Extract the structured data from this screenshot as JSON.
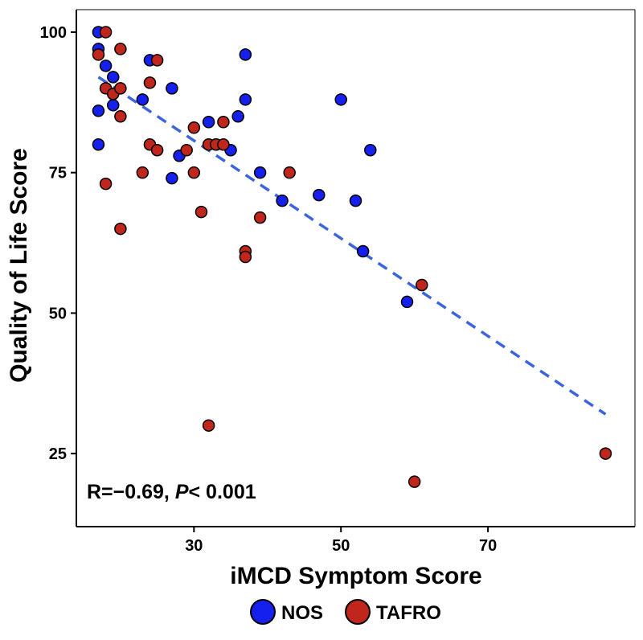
{
  "chart_data": {
    "type": "scatter",
    "title": "",
    "xlabel": "iMCD Symptom Score",
    "ylabel": "Quality of Life Score",
    "xlim": [
      14,
      90
    ],
    "ylim": [
      12,
      104
    ],
    "xticks": [
      30,
      50,
      70
    ],
    "yticks": [
      25,
      50,
      75,
      100
    ],
    "grid": false,
    "legend": {
      "position": "bottom",
      "entries": [
        "NOS",
        "TAFRO"
      ]
    },
    "annotation": {
      "r_prefix": "R=",
      "r_value": "−0.69",
      "separator": ", ",
      "p_label": "P",
      "p_text": "< 0.001",
      "position": "bottom-left"
    },
    "colors": {
      "NOS": "#1520ee",
      "TAFRO": "#c0261b",
      "trend": "#3c64dc"
    },
    "trendline": {
      "x": [
        17,
        86
      ],
      "y": [
        92,
        32
      ],
      "style": "dashed"
    },
    "series": [
      {
        "name": "NOS",
        "x": [
          17,
          17,
          17,
          17,
          18,
          19,
          19,
          23,
          24,
          27,
          27,
          28,
          32,
          33,
          35,
          36,
          37,
          37,
          39,
          42,
          47,
          50,
          52,
          53,
          54,
          59
        ],
        "y": [
          100,
          97,
          86,
          80,
          94,
          92,
          87,
          88,
          95,
          90,
          74,
          78,
          84,
          80,
          79,
          85,
          88,
          96,
          75,
          70,
          71,
          88,
          70,
          61,
          79,
          52
        ]
      },
      {
        "name": "TAFRO",
        "x": [
          17,
          18,
          18,
          18,
          19,
          20,
          20,
          20,
          20,
          23,
          24,
          24,
          25,
          25,
          29,
          30,
          30,
          31,
          32,
          32,
          33,
          34,
          34,
          37,
          37,
          39,
          43,
          60,
          61,
          86
        ],
        "y": [
          96,
          100,
          90,
          73,
          89,
          97,
          90,
          85,
          65,
          75,
          91,
          80,
          95,
          79,
          79,
          83,
          75,
          68,
          30,
          80,
          80,
          84,
          80,
          61,
          60,
          67,
          75,
          20,
          55,
          25
        ]
      }
    ]
  }
}
